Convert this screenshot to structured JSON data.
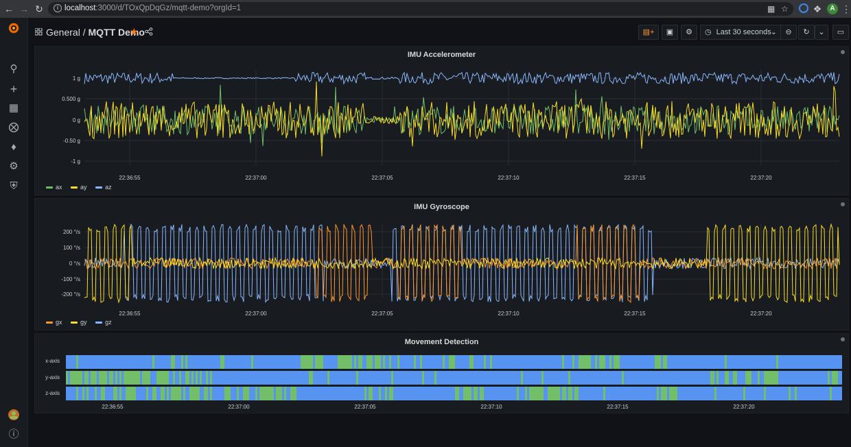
{
  "browser": {
    "url_host": "localhost",
    "url_path": ":3000/d/TOxQpDqGz/mqtt-demo?orgId=1",
    "profile_initial": "A"
  },
  "header": {
    "folder": "General",
    "separator": "/",
    "dashboard_title": "MQTT Demo",
    "time_range_label": "Last 30 seconds"
  },
  "colors": {
    "green": "#73bf69",
    "yellow": "#fade2a",
    "blue": "#8ab8ff",
    "orange": "#ff9830",
    "state_blue": "#5794f2",
    "state_green": "#73bf69",
    "star": "#ff780a"
  },
  "time_ticks": [
    "22:36:55",
    "22:37:00",
    "22:37:05",
    "22:37:10",
    "22:37:15",
    "22:37:20"
  ],
  "panels": {
    "accelerometer": {
      "title": "IMU Accelerometer",
      "y_ticks": [
        "1 g",
        "0.500 g",
        "0 g",
        "-0.50 g",
        "-1 g"
      ],
      "legend": [
        {
          "name": "ax",
          "color": "#73bf69"
        },
        {
          "name": "ay",
          "color": "#fade2a"
        },
        {
          "name": "az",
          "color": "#8ab8ff"
        }
      ]
    },
    "gyroscope": {
      "title": "IMU Gyroscope",
      "y_ticks": [
        "200 °/s",
        "100 °/s",
        "0 °/s",
        "-100 °/s",
        "-200 °/s"
      ],
      "legend": [
        {
          "name": "gx",
          "color": "#ff9830"
        },
        {
          "name": "gy",
          "color": "#fade2a"
        },
        {
          "name": "gz",
          "color": "#8ab8ff"
        }
      ]
    },
    "movement": {
      "title": "Movement Detection",
      "rows": [
        "x-axis",
        "y-axis",
        "z-axis"
      ]
    }
  },
  "chart_data": [
    {
      "type": "line",
      "title": "IMU Accelerometer",
      "xlabel": "",
      "ylabel": "",
      "x_range": [
        "22:36:52",
        "22:37:23"
      ],
      "ylim": [
        -1.15,
        1.15
      ],
      "series": [
        {
          "name": "ax",
          "approx_mean": 0,
          "approx_amplitude": 0.3
        },
        {
          "name": "ay",
          "approx_mean": 0,
          "approx_amplitude": 0.5
        },
        {
          "name": "az",
          "approx_mean": 1,
          "approx_amplitude": 0.15
        }
      ]
    },
    {
      "type": "line",
      "title": "IMU Gyroscope",
      "xlabel": "",
      "ylabel": "",
      "x_range": [
        "22:36:52",
        "22:37:23"
      ],
      "ylim": [
        -250,
        250
      ],
      "series": [
        {
          "name": "gx",
          "approx_amplitude": 250
        },
        {
          "name": "gy",
          "approx_amplitude": 250
        },
        {
          "name": "gz",
          "approx_amplitude": 250
        }
      ]
    },
    {
      "type": "heatmap",
      "title": "Movement Detection",
      "rows": [
        "x-axis",
        "y-axis",
        "z-axis"
      ],
      "states": [
        "no-movement (blue)",
        "movement (green)"
      ]
    }
  ]
}
